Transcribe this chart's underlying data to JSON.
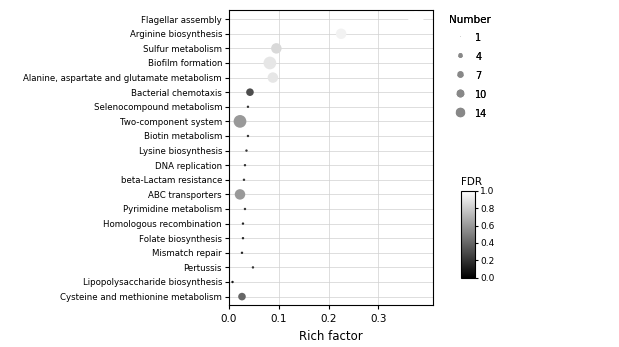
{
  "categories": [
    "Flagellar assembly",
    "Arginine biosynthesis",
    "Sulfur metabolism",
    "Biofilm formation",
    "Alanine, aspartate and glutamate metabolism",
    "Bacterial chemotaxis",
    "Selenocompound metabolism",
    "Two-component system",
    "Biotin metabolism",
    "Lysine biosynthesis",
    "DNA replication",
    "beta-Lactam resistance",
    "ABC transporters",
    "Pyrimidine metabolism",
    "Homologous recombination",
    "Folate biosynthesis",
    "Mismatch repair",
    "Pertussis",
    "Lipopolysaccharide biosynthesis",
    "Cysteine and methionine metabolism"
  ],
  "rich_factor": [
    0.375,
    0.225,
    0.095,
    0.082,
    0.088,
    0.042,
    0.038,
    0.022,
    0.038,
    0.035,
    0.032,
    0.03,
    0.022,
    0.032,
    0.028,
    0.028,
    0.026,
    0.048,
    0.007,
    0.026
  ],
  "number": [
    14,
    7,
    7,
    10,
    7,
    4,
    1,
    10,
    1,
    1,
    1,
    1,
    7,
    1,
    1,
    1,
    1,
    1,
    1,
    4
  ],
  "fdr": [
    0.0,
    0.05,
    0.15,
    0.1,
    0.1,
    0.7,
    0.8,
    0.4,
    0.8,
    0.8,
    0.8,
    0.8,
    0.4,
    0.8,
    0.85,
    0.85,
    0.85,
    0.8,
    0.9,
    0.6
  ],
  "xlabel": "Rich factor",
  "xlim": [
    0.0,
    0.41
  ],
  "xticks": [
    0.0,
    0.1,
    0.2,
    0.3
  ],
  "grid_color": "#d0d0d0",
  "number_legend_sizes": [
    1,
    4,
    7,
    10,
    14
  ],
  "number_legend_labels": [
    "1",
    "4",
    "7",
    "10",
    "14"
  ],
  "size_min": 3,
  "size_max": 120,
  "num_min": 1,
  "num_max": 14
}
